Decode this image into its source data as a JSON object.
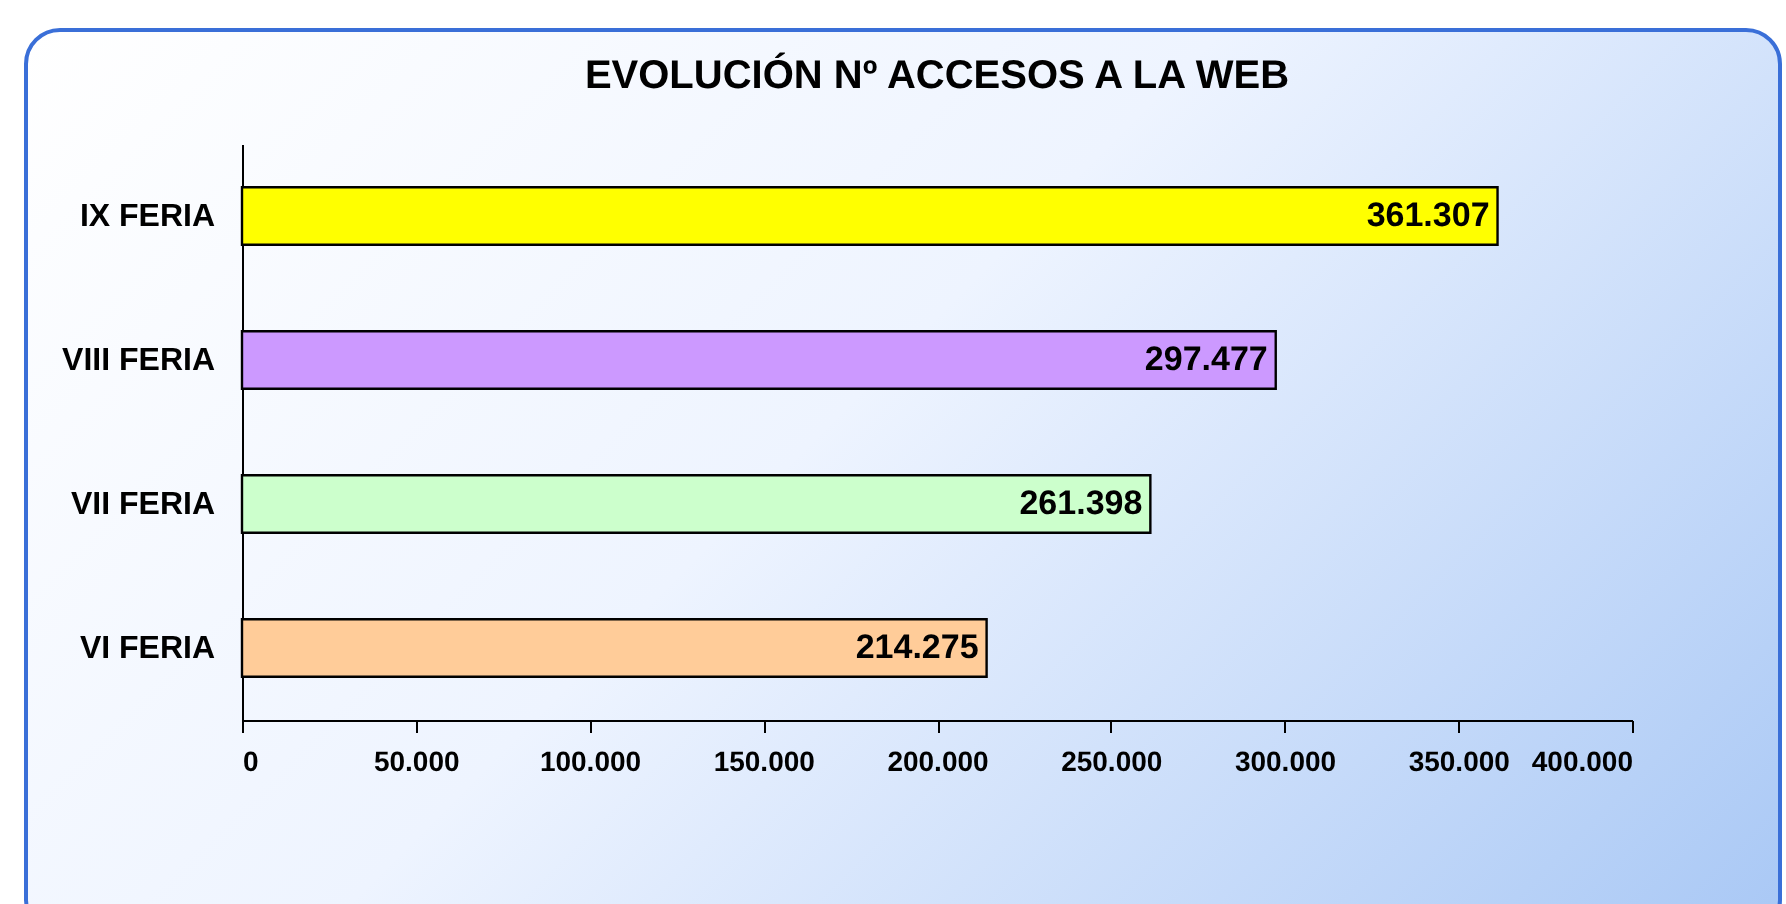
{
  "chart_data": {
    "type": "bar",
    "orientation": "horizontal",
    "title": "EVOLUCIÓN Nº ACCESOS A LA WEB",
    "categories": [
      "IX FERIA",
      "VIII FERIA",
      "VII FERIA",
      "VI FERIA"
    ],
    "values": [
      361307,
      297477,
      261398,
      214275
    ],
    "colors": [
      "#ffff00",
      "#cc99ff",
      "#ccffcc",
      "#ffcc99"
    ],
    "value_labels": [
      "361.307",
      "297.477",
      "261.398",
      "214.275"
    ],
    "xlim": [
      0,
      400000
    ],
    "xticks": [
      0,
      {
        "value": 50000,
        "label": "50.000"
      },
      {
        "value": 100000,
        "label": "100.000"
      },
      {
        "value": 150000,
        "label": "150.000"
      },
      {
        "value": 200000,
        "label": "200.000"
      },
      {
        "value": 250000,
        "label": "250.000"
      },
      {
        "value": 300000,
        "label": "300.000"
      },
      {
        "value": 350000,
        "label": "350.000"
      },
      {
        "value": 400000,
        "label": "400.000"
      }
    ],
    "grid": false,
    "legend": false
  }
}
